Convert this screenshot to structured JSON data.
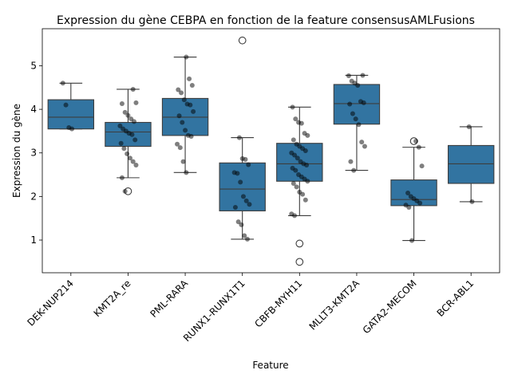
{
  "chart_data": {
    "type": "box",
    "title": "Expression du gène CEBPA en fonction de la feature consensusAMLFusions",
    "xlabel": "Feature",
    "ylabel": "Expression du gène",
    "ylim": [
      0.25,
      5.85
    ],
    "yticks": [
      1,
      2,
      3,
      4,
      5
    ],
    "colors": {
      "box": "#3274a1",
      "edge": "#3d3d3d",
      "point": "#000000"
    },
    "categories": [
      "DEK-NUP214",
      "KMT2A_re",
      "PML-RARA",
      "RUNX1-RUNX1T1",
      "CBFB-MYH11",
      "MLLT3-KMT2A",
      "GATA2-MECOM",
      "BCR-ABL1"
    ],
    "boxes": [
      {
        "q1": 3.55,
        "median": 3.82,
        "q3": 4.22,
        "whisker_low": 3.55,
        "whisker_high": 4.6,
        "outliers": []
      },
      {
        "q1": 3.15,
        "median": 3.48,
        "q3": 3.7,
        "whisker_low": 2.43,
        "whisker_high": 4.46,
        "outliers": [
          2.12
        ]
      },
      {
        "q1": 3.4,
        "median": 3.82,
        "q3": 4.25,
        "whisker_low": 2.55,
        "whisker_high": 5.2,
        "outliers": []
      },
      {
        "q1": 1.67,
        "median": 2.17,
        "q3": 2.77,
        "whisker_low": 1.02,
        "whisker_high": 3.35,
        "outliers": [
          5.58
        ]
      },
      {
        "q1": 2.35,
        "median": 2.75,
        "q3": 3.22,
        "whisker_low": 1.56,
        "whisker_high": 4.05,
        "outliers": [
          0.92,
          0.5
        ]
      },
      {
        "q1": 3.66,
        "median": 4.13,
        "q3": 4.57,
        "whisker_low": 2.6,
        "whisker_high": 4.78,
        "outliers": []
      },
      {
        "q1": 1.79,
        "median": 1.93,
        "q3": 2.38,
        "whisker_low": 0.99,
        "whisker_high": 3.13,
        "outliers": [
          3.27
        ]
      },
      {
        "q1": 2.3,
        "median": 2.75,
        "q3": 3.17,
        "whisker_low": 1.88,
        "whisker_high": 3.6,
        "outliers": []
      }
    ],
    "points": [
      [
        4.6,
        4.1,
        3.58,
        3.55
      ],
      [
        4.46,
        4.15,
        4.13,
        3.93,
        3.86,
        3.78,
        3.72,
        3.62,
        3.55,
        3.5,
        3.45,
        3.42,
        3.3,
        3.22,
        3.1,
        2.98,
        2.88,
        2.8,
        2.72,
        2.43,
        2.12
      ],
      [
        5.2,
        4.7,
        4.55,
        4.45,
        4.38,
        4.22,
        4.12,
        4.1,
        3.95,
        3.85,
        3.7,
        3.52,
        3.4,
        3.38,
        3.2,
        3.12,
        2.8,
        2.55
      ],
      [
        3.35,
        2.87,
        2.85,
        2.73,
        2.55,
        2.53,
        2.33,
        2.0,
        1.9,
        1.82,
        1.75,
        1.42,
        1.35,
        1.1,
        1.02
      ],
      [
        4.05,
        3.78,
        3.7,
        3.68,
        3.45,
        3.4,
        3.3,
        3.2,
        3.15,
        3.1,
        3.05,
        3.0,
        2.95,
        2.88,
        2.8,
        2.75,
        2.72,
        2.65,
        2.6,
        2.5,
        2.45,
        2.4,
        2.35,
        2.3,
        2.22,
        2.1,
        2.05,
        1.92,
        1.6,
        1.56
      ],
      [
        4.78,
        4.77,
        4.65,
        4.6,
        4.55,
        4.18,
        4.15,
        4.12,
        3.9,
        3.78,
        3.65,
        3.25,
        3.15,
        2.8,
        2.6
      ],
      [
        3.27,
        3.13,
        2.7,
        2.08,
        2.0,
        1.95,
        1.9,
        1.85,
        1.8,
        1.75,
        0.99
      ],
      [
        3.6,
        1.88
      ]
    ]
  }
}
